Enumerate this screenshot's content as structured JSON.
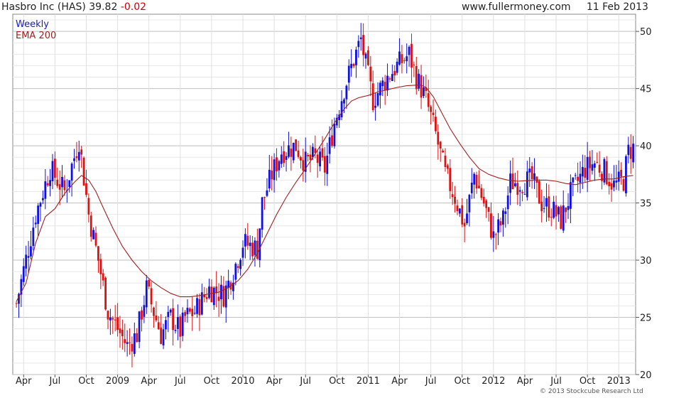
{
  "header": {
    "title": "Hasbro Inc (HAS) 39.82",
    "change": "-0.02",
    "website": "www.fullermoney.com",
    "date": "11 Feb 2013"
  },
  "legend": {
    "weekly": "Weekly",
    "ema": "EMA 200"
  },
  "copyright": "© 2013 Stockcube Research Ltd",
  "colors": {
    "up": "#1010e0",
    "down": "#e01010",
    "ema": "#a02020",
    "grid": "#c8c8c8"
  },
  "chart_data": {
    "type": "candlestick",
    "x_tick_labels": [
      "Apr",
      "Jul",
      "Oct",
      "2009",
      "Apr",
      "Jul",
      "Oct",
      "2010",
      "Apr",
      "Jul",
      "Oct",
      "2011",
      "Apr",
      "Jul",
      "Oct",
      "2012",
      "Apr",
      "Jul",
      "Oct",
      "2013"
    ],
    "x_ticks": [
      3,
      16,
      29,
      42,
      55,
      68,
      81,
      94,
      107,
      120,
      133,
      146,
      159,
      172,
      185,
      198,
      211,
      224,
      237,
      250
    ],
    "y_ticks": [
      20,
      25,
      30,
      35,
      40,
      45,
      50
    ],
    "ylim": [
      20,
      51.5
    ],
    "x_range": [
      -1.5,
      257
    ],
    "grid": true,
    "trend_anchors": [
      [
        0,
        26.2
      ],
      [
        8,
        34
      ],
      [
        14,
        38
      ],
      [
        20,
        36
      ],
      [
        26,
        40.5
      ],
      [
        30,
        34
      ],
      [
        34,
        30
      ],
      [
        38,
        25.5
      ],
      [
        42,
        24
      ],
      [
        46,
        22.5
      ],
      [
        50,
        23.5
      ],
      [
        54,
        27.5
      ],
      [
        57,
        25.5
      ],
      [
        60,
        23.5
      ],
      [
        64,
        25
      ],
      [
        68,
        23.8
      ],
      [
        70,
        25
      ],
      [
        74,
        25.5
      ],
      [
        80,
        27.5
      ],
      [
        86,
        27
      ],
      [
        90,
        29
      ],
      [
        94,
        31.5
      ],
      [
        98,
        31.2
      ],
      [
        100,
        31
      ],
      [
        102,
        35
      ],
      [
        106,
        37.5
      ],
      [
        110,
        39.5
      ],
      [
        116,
        40
      ],
      [
        120,
        38.5
      ],
      [
        124,
        39
      ],
      [
        128,
        38
      ],
      [
        132,
        42
      ],
      [
        136,
        45
      ],
      [
        140,
        47.5
      ],
      [
        143,
        49.3
      ],
      [
        145,
        47
      ],
      [
        148,
        44
      ],
      [
        154,
        46
      ],
      [
        158,
        47
      ],
      [
        163,
        48
      ],
      [
        166,
        46
      ],
      [
        170,
        44
      ],
      [
        174,
        41
      ],
      [
        178,
        37.5
      ],
      [
        182,
        35.5
      ],
      [
        186,
        33
      ],
      [
        190,
        37.5
      ],
      [
        194,
        35
      ],
      [
        198,
        32
      ],
      [
        202,
        33.5
      ],
      [
        205,
        36.8
      ],
      [
        210,
        36.8
      ],
      [
        214,
        37
      ],
      [
        218,
        35
      ],
      [
        222,
        34.5
      ],
      [
        226,
        33.5
      ],
      [
        230,
        35.8
      ],
      [
        236,
        38
      ],
      [
        240,
        38.5
      ],
      [
        244,
        37.8
      ],
      [
        248,
        36.5
      ],
      [
        252,
        37
      ],
      [
        254,
        39.5
      ],
      [
        256,
        39.82
      ]
    ],
    "ema_points": [
      [
        0,
        26.4
      ],
      [
        4,
        28
      ],
      [
        8,
        31.5
      ],
      [
        12,
        33.8
      ],
      [
        16,
        34.5
      ],
      [
        20,
        35.8
      ],
      [
        24,
        36.8
      ],
      [
        27,
        37.4
      ],
      [
        30,
        37
      ],
      [
        33,
        36
      ],
      [
        36,
        34.6
      ],
      [
        40,
        32.8
      ],
      [
        44,
        31.2
      ],
      [
        48,
        30
      ],
      [
        52,
        29
      ],
      [
        56,
        28.2
      ],
      [
        60,
        27.6
      ],
      [
        64,
        27.1
      ],
      [
        68,
        26.8
      ],
      [
        72,
        26.8
      ],
      [
        76,
        26.9
      ],
      [
        80,
        27.05
      ],
      [
        84,
        27.2
      ],
      [
        88,
        27.6
      ],
      [
        92,
        28.2
      ],
      [
        96,
        29.2
      ],
      [
        100,
        30.6
      ],
      [
        104,
        32.3
      ],
      [
        108,
        34
      ],
      [
        112,
        35.5
      ],
      [
        116,
        36.8
      ],
      [
        120,
        38
      ],
      [
        124,
        39.3
      ],
      [
        128,
        40.6
      ],
      [
        132,
        42
      ],
      [
        136,
        43.2
      ],
      [
        139,
        43.9
      ],
      [
        142,
        44.2
      ],
      [
        146,
        44.4
      ],
      [
        150,
        44.7
      ],
      [
        154,
        44.9
      ],
      [
        158,
        45.1
      ],
      [
        162,
        45.25
      ],
      [
        166,
        45.3
      ],
      [
        168,
        45.3
      ],
      [
        170,
        45.1
      ],
      [
        173,
        44.3
      ],
      [
        176,
        43.1
      ],
      [
        180,
        41.5
      ],
      [
        184,
        40.2
      ],
      [
        188,
        39
      ],
      [
        192,
        38
      ],
      [
        196,
        37.5
      ],
      [
        200,
        37.2
      ],
      [
        204,
        37
      ],
      [
        208,
        36.9
      ],
      [
        212,
        36.95
      ],
      [
        216,
        37
      ],
      [
        220,
        37
      ],
      [
        224,
        36.9
      ],
      [
        228,
        36.7
      ],
      [
        232,
        36.6
      ],
      [
        236,
        36.8
      ],
      [
        240,
        37
      ],
      [
        244,
        37.1
      ],
      [
        248,
        37.1
      ],
      [
        252,
        37.3
      ],
      [
        256,
        37.4
      ]
    ]
  }
}
